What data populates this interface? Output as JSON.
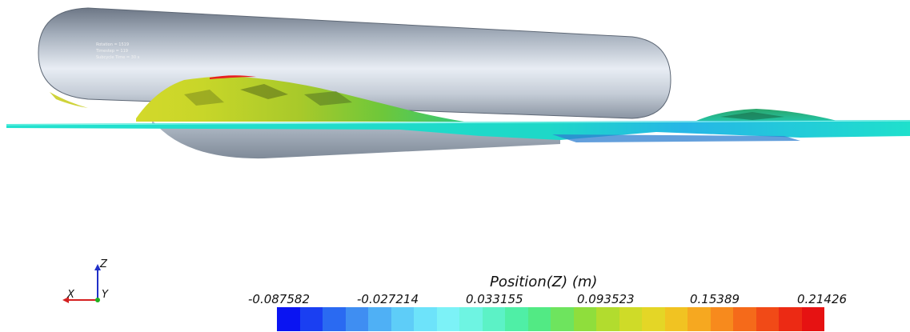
{
  "scene": {
    "overlay_lines": [
      "Rotation = 1519",
      "Timestep = 119",
      "Subcycle Time = 30 s"
    ],
    "colors": {
      "cylinder_light": "#e8edf4",
      "cylinder_mid": "#a7b1be",
      "cylinder_dark": "#6d7786",
      "water_surface": "#1fe0cc"
    }
  },
  "axes_triad": {
    "x_label": "X",
    "y_label": "Y",
    "z_label": "Z",
    "x_color": "#d42020",
    "y_color": "#20b020",
    "z_color": "#2030c8"
  },
  "colorbar": {
    "title": "Position(Z) (m)",
    "tick_labels": [
      "-0.087582",
      "-0.027214",
      "0.033155",
      "0.093523",
      "0.15389",
      "0.21426"
    ],
    "range": [
      -0.087582,
      0.21426
    ],
    "segments": [
      "#0a14f2",
      "#1a3ff2",
      "#2a6af2",
      "#3f8ef2",
      "#4fb0f5",
      "#5ecdf8",
      "#6de3fa",
      "#7cf2f7",
      "#6ef4e2",
      "#5cf2c6",
      "#4fefa6",
      "#52ea84",
      "#6ee45e",
      "#8fde3c",
      "#b2dc2e",
      "#cfdb28",
      "#e4d626",
      "#f1c322",
      "#f6a820",
      "#f78a1d",
      "#f56a1a",
      "#f14a17",
      "#ec2a14",
      "#e61212"
    ]
  }
}
